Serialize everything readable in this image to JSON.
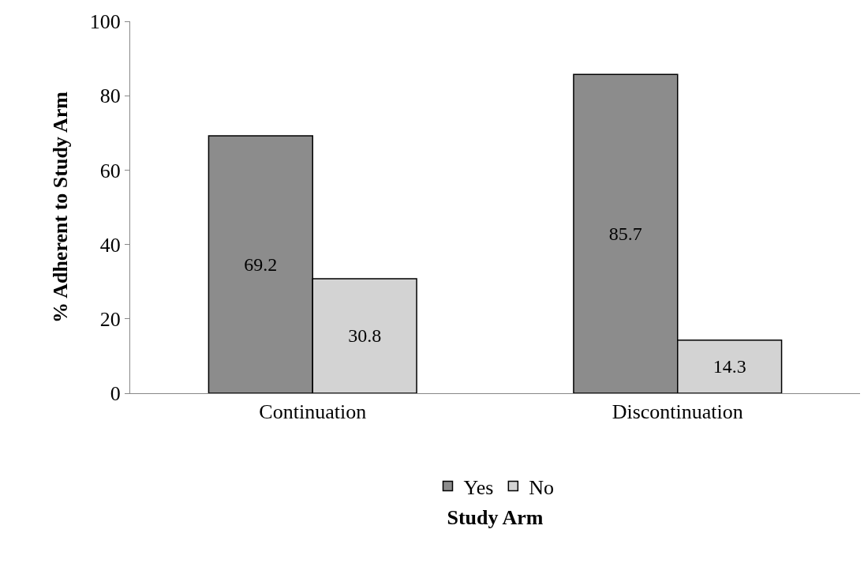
{
  "chart_data": {
    "type": "bar",
    "xlabel": "Study Arm",
    "ylabel": "% Adherent to Study Arm",
    "categories": [
      "Continuation",
      "Discontinuation"
    ],
    "series": [
      {
        "name": "Yes",
        "color": "#8c8c8c",
        "values": [
          69.2,
          85.7
        ]
      },
      {
        "name": "No",
        "color": "#d3d3d3",
        "values": [
          30.8,
          14.3
        ]
      }
    ],
    "ylim": [
      0,
      100
    ],
    "yticks": [
      0,
      20,
      40,
      60,
      80,
      100
    ],
    "legend": "bottom",
    "data_labels": true
  }
}
